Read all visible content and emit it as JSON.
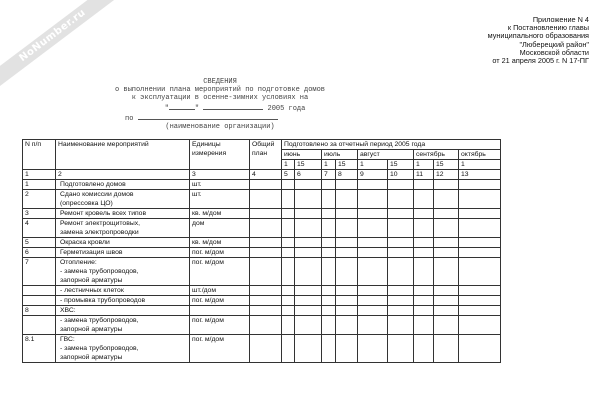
{
  "watermark": "NoNumber.ru",
  "appendix": [
    "Приложение N 4",
    "к Постановлению главы",
    "муниципального образования",
    "\"Люберецкий район\"",
    "Московской области",
    "от 21 апреля 2005 г. N 17-ПГ"
  ],
  "heading": {
    "title": "СВЕДЕНИЯ",
    "line1": "о выполнении плана мероприятий по подготовке домов",
    "line2": "к эксплуатации в осенне-зимних условиях на",
    "quote_open": "\"",
    "quote_close": "\"",
    "year": "2005 года",
    "by": "по",
    "org_caption": "(наименование организации)"
  },
  "table": {
    "headers": {
      "num": "N п/п",
      "name": "Наименование мероприятий",
      "units": "Единицы измерения",
      "plan": "Общий план",
      "period": "Подготовлено за отчетный период 2005 года"
    },
    "months": [
      "июнь",
      "июль",
      "август",
      "сентябрь",
      "октябрь"
    ],
    "days": [
      "1",
      "15",
      "1",
      "15",
      "1",
      "15",
      "1",
      "15",
      "1"
    ],
    "col_numbers": [
      "1",
      "2",
      "3",
      "4",
      "5",
      "6",
      "7",
      "8",
      "9",
      "10",
      "11",
      "12",
      "13"
    ],
    "rows": [
      {
        "num": "1",
        "name": [
          "Подготовлено домов"
        ],
        "unit": "шт."
      },
      {
        "num": "2",
        "name": [
          "Сдано комиссии домов",
          "(опрессовка ЦО)"
        ],
        "unit": "шт."
      },
      {
        "num": "3",
        "name": [
          "Ремонт кровель всех типов"
        ],
        "unit": "кв. м/дом"
      },
      {
        "num": "4",
        "name": [
          "Ремонт электрощитовых,",
          "замена электропроводки"
        ],
        "unit": "дом"
      },
      {
        "num": "5",
        "name": [
          "Окраска кровли"
        ],
        "unit": "кв. м/дом"
      },
      {
        "num": "6",
        "name": [
          "Герметизация швов"
        ],
        "unit": "пог. м/дом"
      },
      {
        "num": "7",
        "name": [
          "Отопление:",
          "- замена трубопроводов,",
          "запорной арматуры"
        ],
        "unit": "пог. м/дом"
      },
      {
        "num": "",
        "name": [
          "- лестничных клеток"
        ],
        "unit": "шт./дом"
      },
      {
        "num": "",
        "name": [
          "- промывка трубопроводов"
        ],
        "unit": "пог. м/дом"
      },
      {
        "num": "8",
        "name": [
          "ХВС:"
        ],
        "unit": ""
      },
      {
        "num": "",
        "name": [
          "- замена трубопроводов,",
          "запорной арматуры"
        ],
        "unit": "пог. м/дом"
      },
      {
        "num": "8.1",
        "name": [
          "ГВС:",
          "- замена трубопроводов,",
          "запорной арматуры"
        ],
        "unit": "пог. м/дом"
      }
    ]
  }
}
